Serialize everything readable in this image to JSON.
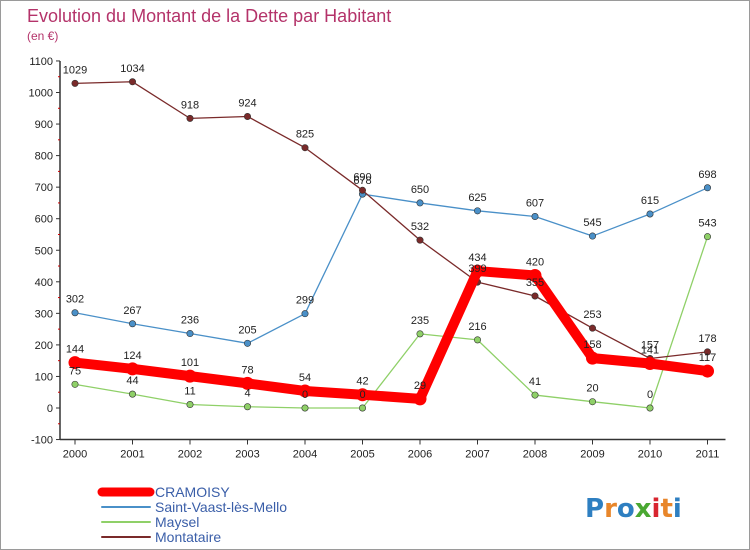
{
  "chart_data": {
    "type": "line",
    "title": "Evolution du Montant de la Dette par Habitant",
    "subtitle": "(en €)",
    "xlabel": "",
    "ylabel": "",
    "x": [
      "2000",
      "2001",
      "2002",
      "2003",
      "2004",
      "2005",
      "2006",
      "2007",
      "2008",
      "2009",
      "2010",
      "2011"
    ],
    "ylim": [
      -100,
      1100
    ],
    "yticks": [
      -100,
      0,
      100,
      200,
      300,
      400,
      500,
      600,
      700,
      800,
      900,
      1000,
      1100
    ],
    "grid": false,
    "legend_position": "bottom-left",
    "series": [
      {
        "name": "CRAMOISY",
        "color": "#ff0000",
        "emphasis": true,
        "values": [
          144,
          124,
          101,
          78,
          54,
          42,
          29,
          434,
          420,
          158,
          141,
          117
        ],
        "labels": [
          "144",
          "124",
          "101",
          "78",
          "54",
          "42",
          "29",
          "434",
          "420",
          "158",
          "141",
          "117"
        ]
      },
      {
        "name": "Saint-Vaast-lès-Mello",
        "color": "#4a90c8",
        "values": [
          302,
          267,
          236,
          205,
          299,
          678,
          650,
          625,
          607,
          545,
          615,
          698
        ],
        "labels": [
          "302",
          "267",
          "236",
          "205",
          "299",
          "678",
          "650",
          "625",
          "607",
          "545",
          "615",
          "698"
        ]
      },
      {
        "name": "Maysel",
        "color": "#8fd068",
        "values": [
          75,
          44,
          11,
          4,
          0,
          0,
          235,
          216,
          41,
          20,
          0,
          543
        ],
        "labels": [
          "75",
          "44",
          "11",
          "4",
          "0",
          "0",
          "235",
          "216",
          "41",
          "20",
          "0",
          "543"
        ]
      },
      {
        "name": "Montataire",
        "color": "#7a2a2a",
        "values": [
          1029,
          1034,
          918,
          924,
          825,
          690,
          532,
          399,
          355,
          253,
          157,
          178
        ],
        "labels": [
          "1029",
          "1034",
          "918",
          "924",
          "825",
          "690",
          "532",
          "399",
          "355",
          "253",
          "157",
          "178"
        ]
      }
    ]
  },
  "logo": {
    "text": "Proxiti"
  }
}
